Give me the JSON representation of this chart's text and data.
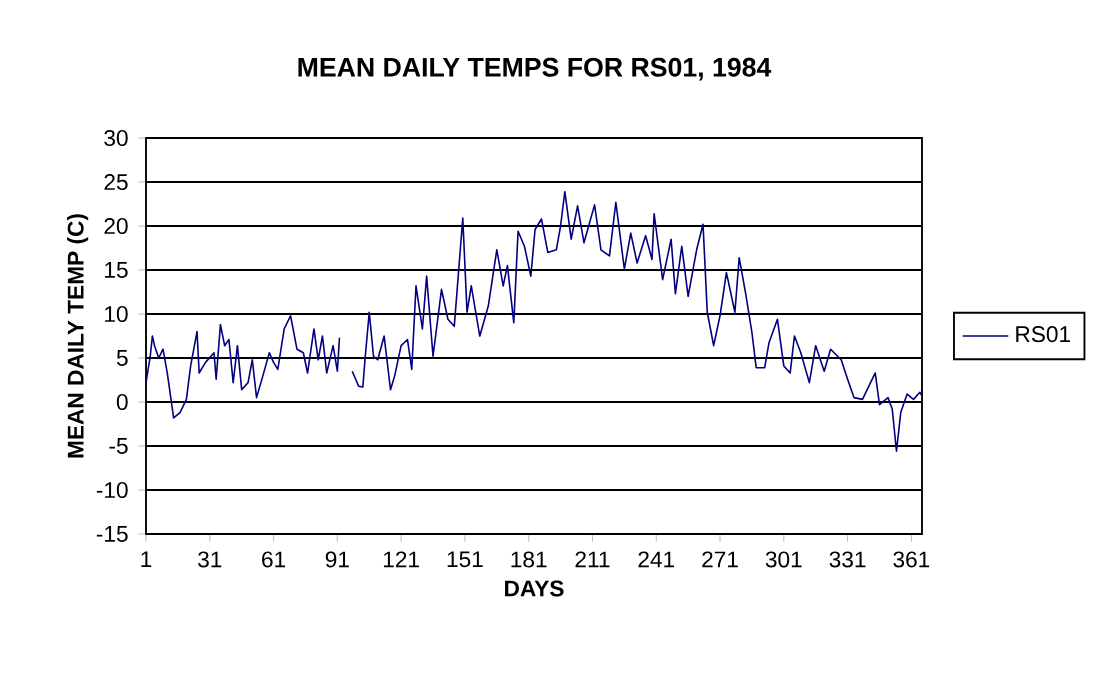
{
  "chart_data": {
    "type": "line",
    "title": "MEAN DAILY TEMPS FOR RS01, 1984",
    "xlabel": "DAYS",
    "ylabel": "MEAN DAILY TEMP (C)",
    "xlim": [
      1,
      366
    ],
    "xticks": [
      1,
      31,
      61,
      91,
      121,
      151,
      181,
      211,
      241,
      271,
      301,
      331,
      361
    ],
    "ylim": [
      -15,
      30
    ],
    "yticks": [
      -15,
      -10,
      -5,
      0,
      5,
      10,
      15,
      20,
      25,
      30
    ],
    "grid": "y",
    "legend": "right",
    "marker": "none",
    "line_style": "solid",
    "series": [
      {
        "name": "RS01",
        "color": "#000080",
        "x": [
          1,
          3,
          4,
          5,
          7,
          9,
          11,
          14,
          17,
          20,
          22,
          25,
          26,
          29,
          33,
          34,
          36,
          38,
          40,
          42,
          44,
          46,
          49,
          51,
          53,
          56,
          59,
          61,
          63,
          66,
          69,
          72,
          75,
          77,
          80,
          82,
          84,
          86,
          89,
          91,
          92,
          95,
          98,
          101,
          103,
          104,
          106,
          108,
          110,
          113,
          116,
          118,
          121,
          124,
          126,
          128,
          131,
          133,
          136,
          140,
          143,
          146,
          150,
          152,
          154,
          158,
          162,
          166,
          169,
          171,
          174,
          176,
          179,
          182,
          184,
          187,
          190,
          194,
          196,
          198,
          201,
          204,
          207,
          212,
          215,
          219,
          222,
          226,
          229,
          232,
          236,
          239,
          240,
          244,
          248,
          250,
          253,
          256,
          260,
          263,
          265,
          268,
          271,
          274,
          278,
          280,
          283,
          286,
          288,
          292,
          294,
          298,
          301,
          304,
          306,
          309,
          313,
          316,
          320,
          323,
          328,
          331,
          334,
          338,
          341,
          344,
          346,
          350,
          352,
          354,
          356,
          359,
          362,
          365,
          366
        ],
        "values": [
          2.2,
          5.2,
          7.5,
          6.4,
          5,
          6,
          3.3,
          -1.8,
          -1.2,
          0.3,
          4.1,
          8,
          3.3,
          4.5,
          5.6,
          2.6,
          8.8,
          6.4,
          7.1,
          2.2,
          6.4,
          1.4,
          2.2,
          4.8,
          0.5,
          3,
          5.6,
          4.5,
          3.7,
          8.3,
          9.8,
          6,
          5.6,
          3.3,
          8.3,
          4.8,
          7.5,
          3.3,
          6.4,
          3.5,
          7.3,
          null,
          3.5,
          1.8,
          1.7,
          4.8,
          10.2,
          5.2,
          4.8,
          7.5,
          1.4,
          3,
          6.4,
          7.1,
          3.7,
          13.2,
          8.3,
          14.3,
          5.2,
          12.8,
          9.4,
          8.6,
          20.9,
          10.2,
          13.2,
          7.5,
          10.9,
          17.3,
          13.2,
          15.5,
          9,
          19.4,
          17.7,
          14.3,
          19.6,
          20.8,
          17,
          17.3,
          20,
          23.9,
          18.5,
          22.3,
          18.1,
          22.4,
          17.3,
          16.6,
          22.7,
          15.1,
          19.2,
          15.8,
          18.9,
          16.2,
          21.4,
          13.9,
          18.5,
          12.3,
          17.7,
          12,
          17.3,
          20.2,
          10.2,
          6.4,
          9.8,
          14.7,
          10.2,
          16.4,
          12.4,
          7.9,
          3.9,
          3.9,
          6.7,
          9.4,
          4.1,
          3.3,
          7.5,
          5.6,
          2.2,
          6.4,
          3.5,
          6,
          4.8,
          2.6,
          0.5,
          0.3,
          1.8,
          3.3,
          -0.3,
          0.5,
          -0.8,
          -5.6,
          -1.2,
          0.9,
          0.3,
          1.1,
          0.7
        ]
      }
    ]
  }
}
